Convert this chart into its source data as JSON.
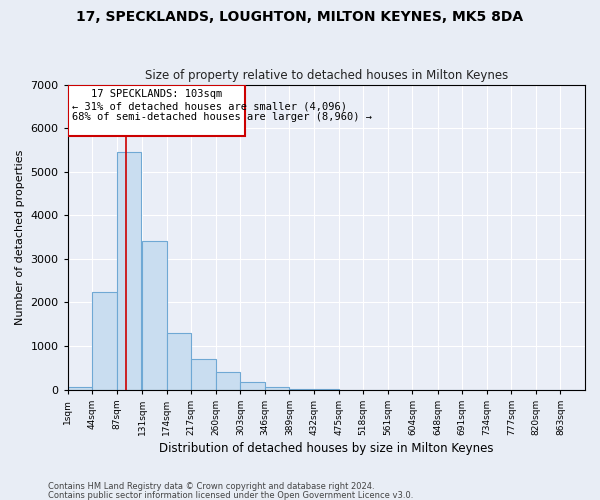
{
  "title": "17, SPECKLANDS, LOUGHTON, MILTON KEYNES, MK5 8DA",
  "subtitle": "Size of property relative to detached houses in Milton Keynes",
  "xlabel": "Distribution of detached houses by size in Milton Keynes",
  "ylabel": "Number of detached properties",
  "footnote1": "Contains HM Land Registry data © Crown copyright and database right 2024.",
  "footnote2": "Contains public sector information licensed under the Open Government Licence v3.0.",
  "bar_color": "#c9ddf0",
  "bar_edge_color": "#6fa8d4",
  "background_color": "#e8edf5",
  "plot_bg_color": "#eaeef7",
  "grid_color": "#ffffff",
  "red_line_color": "#cc0000",
  "annotation_line1": "17 SPECKLANDS: 103sqm",
  "annotation_line2": "← 31% of detached houses are smaller (4,096)",
  "annotation_line3": "68% of semi-detached houses are larger (8,960) →",
  "property_size_bin": 2,
  "categories": [
    "1sqm",
    "44sqm",
    "87sqm",
    "131sqm",
    "174sqm",
    "217sqm",
    "260sqm",
    "303sqm",
    "346sqm",
    "389sqm",
    "432sqm",
    "475sqm",
    "518sqm",
    "561sqm",
    "604sqm",
    "648sqm",
    "691sqm",
    "734sqm",
    "777sqm",
    "820sqm",
    "863sqm"
  ],
  "bin_starts": [
    1,
    44,
    87,
    131,
    174,
    217,
    260,
    303,
    346,
    389,
    432,
    475,
    518,
    561,
    604,
    648,
    691,
    734,
    777,
    820,
    863
  ],
  "bin_width": 43,
  "values": [
    55,
    2250,
    5450,
    3400,
    1300,
    700,
    400,
    170,
    60,
    20,
    5,
    2,
    0,
    0,
    0,
    0,
    0,
    0,
    0,
    0,
    0
  ],
  "ylim": [
    0,
    7000
  ],
  "yticks": [
    0,
    1000,
    2000,
    3000,
    4000,
    5000,
    6000,
    7000
  ],
  "red_line_x": 103
}
